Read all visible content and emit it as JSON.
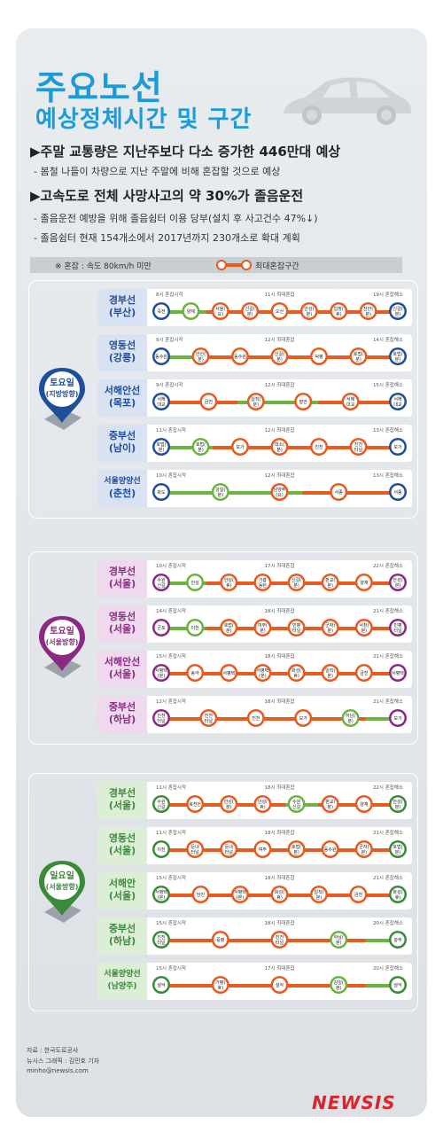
{
  "header": {
    "title_line1": "주요노선",
    "title_line2": "예상정체시간 및 구간"
  },
  "bullets": [
    {
      "text": "▶주말 교통량은 지난주보다 다소 증가한 446만대 예상",
      "subs": [
        "- 봄철 나들이 차량으로 지난 주말에 비해 혼잡할 것으로 예상"
      ]
    },
    {
      "text": "▶고속도로 전체 사망사고의 약 30%가 졸음운전",
      "subs": [
        "- 졸음운전 예방을 위해 졸음쉼터 이용 당부(설치 후 사고건수 47%↓)",
        "- 졸음쉼터 현재 154개소에서 2017년까지 230개소로 확대 계획"
      ]
    }
  ],
  "legend": {
    "congestion": "※ 혼잡 : 속도 80km/h 미만",
    "peak_section": "최대혼잡구간"
  },
  "sections": [
    {
      "badge": [
        "토요일",
        "(지방방향)"
      ],
      "color": "#1f4e9a",
      "light": "#d8e2f2",
      "routes": [
        {
          "name": [
            "경부선",
            "(부산)"
          ],
          "times": [
            "8시 혼잡시작",
            "11시 최대혼잡",
            "19시 혼잡해소"
          ],
          "nodes": [
            {
              "t": "죽전",
              "k": "e"
            },
            {
              "t": "양재",
              "k": "g"
            },
            {
              "t": "서울(요)",
              "k": "o"
            },
            {
              "t": "신갈(분)",
              "k": "o"
            },
            {
              "t": "오산",
              "k": "o"
            },
            {
              "t": "안성(분)",
              "k": "o"
            },
            {
              "t": "입장(휴)",
              "k": "o"
            },
            {
              "t": "천안(분)",
              "k": "o"
            },
            {
              "t": "신갈(분)",
              "k": "e"
            }
          ],
          "bar": [
            [
              0.06,
              0.2,
              "g"
            ],
            [
              0.2,
              0.8,
              "o"
            ]
          ]
        },
        {
          "name": [
            "영동선",
            "(강릉)"
          ],
          "times": [
            "9시 혼잡시작",
            "12시 최대혼잡",
            "14시 혼잡해소"
          ],
          "nodes": [
            {
              "t": "동수원",
              "k": "e"
            },
            {
              "t": "안산(분)",
              "k": "o"
            },
            {
              "t": "동수원",
              "k": "o"
            },
            {
              "t": "신갈(분)",
              "k": "o"
            },
            {
              "t": "덕평",
              "k": "o"
            },
            {
              "t": "호법(분)",
              "k": "o"
            },
            {
              "t": "호법(분)",
              "k": "e"
            }
          ],
          "bar": [
            [
              0.06,
              0.16,
              "g"
            ],
            [
              0.16,
              0.8,
              "o"
            ]
          ]
        },
        {
          "name": [
            "서해안선",
            "(목포)"
          ],
          "times": [
            "9시 혼잡시작",
            "12시 최대혼잡",
            "15시 혼잡해소"
          ],
          "nodes": [
            {
              "t": "서해대교",
              "k": "e"
            },
            {
              "t": "금천",
              "k": "o"
            },
            {
              "t": "일직(분)",
              "k": "o"
            },
            {
              "t": "발안",
              "k": "o"
            },
            {
              "t": "서해대교",
              "k": "o"
            },
            {
              "t": "서해대교",
              "k": "e"
            }
          ],
          "bar": [
            [
              0.06,
              0.3,
              "o"
            ],
            [
              0.3,
              0.55,
              "g"
            ],
            [
              0.55,
              0.8,
              "o"
            ]
          ]
        },
        {
          "name": [
            "중부선",
            "(남이)"
          ],
          "times": [
            "11시 혼잡시작",
            "12시 최대혼잡",
            "13시 혼잡해소"
          ],
          "nodes": [
            {
              "t": "호법(분)",
              "k": "e"
            },
            {
              "t": "호법(분)",
              "k": "g"
            },
            {
              "t": "모가",
              "k": "o"
            },
            {
              "t": "대소(분)",
              "k": "o"
            },
            {
              "t": "진천",
              "k": "o"
            },
            {
              "t": "진천터널",
              "k": "o"
            },
            {
              "t": "모가",
              "k": "e"
            }
          ],
          "bar": [
            [
              0.06,
              0.22,
              "g"
            ],
            [
              0.22,
              0.8,
              "o"
            ]
          ]
        },
        {
          "name": [
            "서울양양선",
            "(춘천)"
          ],
          "times": [
            "10시 혼잡시작",
            "12시 최대혼잡",
            "13시 혼잡해소"
          ],
          "nodes": [
            {
              "t": "화도",
              "k": "e"
            },
            {
              "t": "강일(분)",
              "k": "g"
            },
            {
              "t": "남양주(요)",
              "k": "o"
            },
            {
              "t": "서종",
              "k": "o"
            },
            {
              "t": "서종",
              "k": "e"
            }
          ],
          "bar": [
            [
              0.06,
              0.5,
              "g"
            ],
            [
              0.5,
              0.8,
              "o"
            ]
          ]
        }
      ]
    },
    {
      "badge": [
        "토요일",
        "(서울방향)"
      ],
      "color": "#8a2a82",
      "light": "#efd9ee",
      "routes": [
        {
          "name": [
            "경부선",
            "(서울)"
          ],
          "times": [
            "10시 혼잡시작",
            "17시 최대혼잡",
            "22시 혼잡해소"
          ],
          "nodes": [
            {
              "t": "수원신갈",
              "k": "e"
            },
            {
              "t": "안성",
              "k": "g"
            },
            {
              "t": "안성(휴)",
              "k": "o"
            },
            {
              "t": "기흥동탄",
              "k": "o"
            },
            {
              "t": "신갈(분)",
              "k": "o"
            },
            {
              "t": "판교(분)",
              "k": "o"
            },
            {
              "t": "양재",
              "k": "o"
            },
            {
              "t": "안성(분)",
              "k": "e"
            }
          ],
          "bar": [
            [
              0.06,
              0.2,
              "g"
            ],
            [
              0.2,
              0.8,
              "o"
            ]
          ]
        },
        {
          "name": [
            "영동선",
            "(서울)"
          ],
          "times": [
            "14시 혼잡시작",
            "18시 최대혼잡",
            "21시 혼잡해소"
          ],
          "nodes": [
            {
              "t": "군포",
              "k": "e"
            },
            {
              "t": "이천",
              "k": "g"
            },
            {
              "t": "호법(분)",
              "k": "o"
            },
            {
              "t": "여주(분)",
              "k": "o"
            },
            {
              "t": "빈평터널",
              "k": "o"
            },
            {
              "t": "군자(분)",
              "k": "o"
            },
            {
              "t": "서창(분)",
              "k": "o"
            },
            {
              "t": "빈평터널",
              "k": "e"
            }
          ],
          "bar": [
            [
              0.06,
              0.2,
              "g"
            ],
            [
              0.2,
              0.8,
              "o"
            ]
          ]
        },
        {
          "name": [
            "서해안선",
            "(서울)"
          ],
          "times": [
            "15시 혼잡시작",
            "18시 최대혼잡",
            "21시 혼잡해소"
          ],
          "nodes": [
            {
              "t": "서평택(분)",
              "k": "e"
            },
            {
              "t": "송악",
              "k": "o"
            },
            {
              "t": "서평택",
              "k": "o"
            },
            {
              "t": "서평택(분)",
              "k": "o"
            },
            {
              "t": "화성(휴)",
              "k": "o"
            },
            {
              "t": "일직(분)",
              "k": "o"
            },
            {
              "t": "금천",
              "k": "o"
            },
            {
              "t": "서평택",
              "k": "e"
            }
          ],
          "bar": [
            [
              0.06,
              0.8,
              "o"
            ]
          ]
        },
        {
          "name": [
            "중부선",
            "(하남)"
          ],
          "times": [
            "12시 혼잡시작",
            "18시 최대혼잡",
            "21시 혼잡해소"
          ],
          "nodes": [
            {
              "t": "진천터널",
              "k": "e"
            },
            {
              "t": "진천터널",
              "k": "o"
            },
            {
              "t": "진천",
              "k": "o"
            },
            {
              "t": "모가",
              "k": "o"
            },
            {
              "t": "하남(분)",
              "k": "g"
            },
            {
              "t": "모가",
              "k": "e"
            }
          ],
          "bar": [
            [
              0.06,
              0.7,
              "o"
            ],
            [
              0.7,
              0.8,
              "g"
            ]
          ]
        }
      ]
    },
    {
      "badge": [
        "일요일",
        "(서울방향)"
      ],
      "color": "#3a8a3a",
      "light": "#dcefd6",
      "routes": [
        {
          "name": [
            "경부선",
            "(서울)"
          ],
          "times": [
            "11시 혼잡시작",
            "18시 최대혼잡",
            "22시 혼잡해소"
          ],
          "nodes": [
            {
              "t": "수원신갈",
              "k": "e"
            },
            {
              "t": "북천안",
              "k": "o"
            },
            {
              "t": "안성(분)",
              "k": "o"
            },
            {
              "t": "안성(휴)",
              "k": "o"
            },
            {
              "t": "수원신갈",
              "k": "g"
            },
            {
              "t": "판교(분)",
              "k": "o"
            },
            {
              "t": "양재",
              "k": "o"
            },
            {
              "t": "안성(분)",
              "k": "e"
            }
          ],
          "bar": [
            [
              0.06,
              0.45,
              "o"
            ],
            [
              0.45,
              0.55,
              "g"
            ],
            [
              0.55,
              0.8,
              "o"
            ]
          ]
        },
        {
          "name": [
            "영동선",
            "(서울)"
          ],
          "times": [
            "11시 혼잡시작",
            "18시 최대혼잡",
            "21시 혼잡해소"
          ],
          "nodes": [
            {
              "t": "이천",
              "k": "e"
            },
            {
              "t": "둔내터널",
              "k": "o"
            },
            {
              "t": "둔내터널",
              "k": "o"
            },
            {
              "t": "여주",
              "k": "o"
            },
            {
              "t": "호법(분)",
              "k": "o"
            },
            {
              "t": "동수원",
              "k": "o"
            },
            {
              "t": "군자(분)",
              "k": "o"
            },
            {
              "t": "호법(분)",
              "k": "e"
            }
          ],
          "bar": [
            [
              0.06,
              0.8,
              "o"
            ]
          ]
        },
        {
          "name": [
            "서해안",
            "(서울)"
          ],
          "times": [
            "15시 혼잡시작",
            "18시 최대혼잡",
            "21시 혼잡해소"
          ],
          "nodes": [
            {
              "t": "서평택(분)",
              "k": "e"
            },
            {
              "t": "당진",
              "k": "o"
            },
            {
              "t": "서평택(분)",
              "k": "o"
            },
            {
              "t": "화성(휴)",
              "k": "o"
            },
            {
              "t": "일직(분)",
              "k": "o"
            },
            {
              "t": "금천",
              "k": "o"
            },
            {
              "t": "화성(휴)",
              "k": "e"
            }
          ],
          "bar": [
            [
              0.06,
              0.8,
              "o"
            ]
          ]
        },
        {
          "name": [
            "중부선",
            "(하남)"
          ],
          "times": [
            "15시 혼잡시작",
            "18시 최대혼잡",
            "20시 혼잡해소"
          ],
          "nodes": [
            {
              "t": "진천터널",
              "k": "e"
            },
            {
              "t": "증평",
              "k": "o"
            },
            {
              "t": "진천터널",
              "k": "o"
            },
            {
              "t": "하남(분)",
              "k": "g"
            },
            {
              "t": "광주",
              "k": "e"
            }
          ],
          "bar": [
            [
              0.06,
              0.7,
              "o"
            ],
            [
              0.7,
              0.8,
              "g"
            ]
          ]
        },
        {
          "name": [
            "서울양양선",
            "(남양주)"
          ],
          "times": [
            "15시 혼잡시작",
            "17시 최대혼잡",
            "20시 혼잡해소"
          ],
          "nodes": [
            {
              "t": "설악",
              "k": "e"
            },
            {
              "t": "가평(휴)",
              "k": "o"
            },
            {
              "t": "설악",
              "k": "o"
            },
            {
              "t": "강일(분)",
              "k": "g"
            },
            {
              "t": "설악",
              "k": "e"
            }
          ],
          "bar": [
            [
              0.06,
              0.7,
              "o"
            ],
            [
              0.7,
              0.8,
              "g"
            ]
          ]
        }
      ]
    }
  ],
  "credits": [
    "자료 : 한국도로공사",
    "뉴시스 그래픽 : 김민호 기자",
    "minho@newsis.com"
  ],
  "brand": "NEWSIS",
  "colors": {
    "orange": "#e85a1e",
    "green": "#6cb33f",
    "title_blue": "#1b9bd8"
  }
}
